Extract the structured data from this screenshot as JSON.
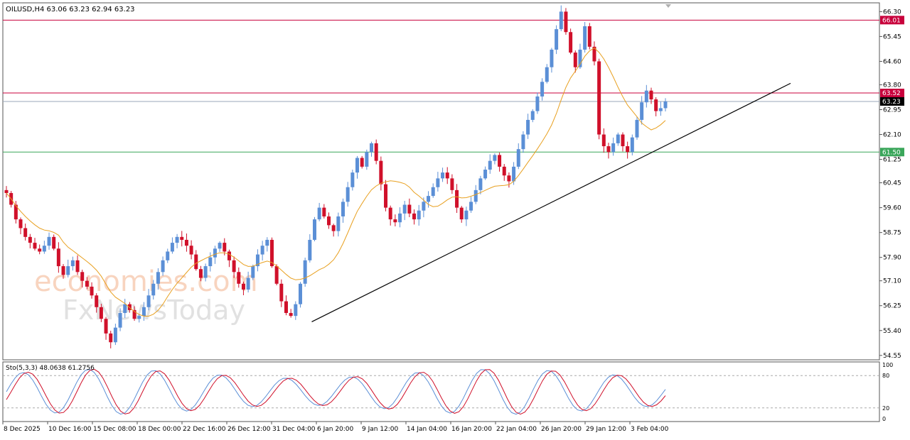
{
  "chart_data": [
    {
      "type": "candlestick",
      "symbol_line": "OILUSD,H4  63.06 63.23 62.94 63.23",
      "y_ticks": [
        "66.30",
        "65.45",
        "64.60",
        "63.80",
        "62.95",
        "62.10",
        "61.25",
        "60.45",
        "59.60",
        "58.75",
        "57.90",
        "57.10",
        "56.25",
        "55.40",
        "54.55"
      ],
      "ylim": [
        54.4,
        66.6
      ],
      "x_ticks": [
        "8 Dec 2025",
        "10 Dec 16:00",
        "15 Dec 08:00",
        "18 Dec 00:00",
        "22 Dec 16:00",
        "26 Dec 12:00",
        "31 Dec 04:00",
        "6 Jan 20:00",
        "9 Jan 12:00",
        "14 Jan 04:00",
        "16 Jan 20:00",
        "22 Jan 04:00",
        "26 Jan 20:00",
        "29 Jan 12:00",
        "3 Feb 04:00"
      ],
      "horizontal_levels": [
        {
          "value": 66.01,
          "label": "66.01",
          "color": "#c8003c"
        },
        {
          "value": 63.52,
          "label": "63.52",
          "color": "#c8003c"
        },
        {
          "value": 63.23,
          "label": "63.23",
          "color": "#9aa7b8",
          "current_price": true
        },
        {
          "value": 61.5,
          "label": "61.50",
          "color": "#3aa65a"
        }
      ],
      "trendline": {
        "from": {
          "x": "6 Jan 20:00",
          "y": 55.7
        },
        "to": {
          "x": "after 3 Feb 04:00",
          "y": 63.85
        },
        "color": "#000000"
      },
      "moving_average_color": "#e8a020",
      "bull_color": "#5b8fd6",
      "bear_color": "#d0102a",
      "price_path": [
        60.1,
        59.7,
        59.2,
        58.9,
        58.6,
        58.4,
        58.2,
        58.1,
        58.3,
        58.6,
        58.2,
        57.6,
        57.3,
        57.6,
        57.8,
        57.4,
        57.1,
        56.9,
        56.6,
        56.2,
        55.8,
        55.3,
        55.0,
        55.5,
        56.0,
        56.3,
        56.1,
        55.8,
        55.9,
        56.2,
        56.6,
        57.0,
        57.4,
        57.8,
        58.1,
        58.4,
        58.6,
        58.5,
        58.3,
        58.0,
        57.5,
        57.2,
        57.6,
        57.9,
        58.2,
        58.4,
        58.1,
        57.8,
        57.4,
        57.0,
        56.8,
        57.2,
        57.6,
        58.0,
        58.3,
        58.5,
        57.6,
        57.0,
        56.4,
        56.0,
        55.9,
        56.3,
        57.0,
        57.8,
        58.5,
        59.2,
        59.6,
        59.3,
        59.0,
        58.8,
        59.3,
        59.8,
        60.3,
        60.8,
        61.3,
        61.0,
        61.5,
        61.8,
        61.2,
        60.4,
        59.6,
        59.2,
        59.1,
        59.4,
        59.7,
        59.4,
        59.2,
        59.5,
        59.8,
        60.0,
        60.3,
        60.6,
        60.8,
        60.6,
        60.2,
        59.6,
        59.2,
        59.5,
        59.8,
        60.2,
        60.6,
        60.9,
        61.2,
        61.4,
        61.0,
        60.7,
        60.5,
        61.0,
        61.6,
        62.1,
        62.6,
        62.9,
        63.4,
        63.9,
        64.4,
        65.0,
        65.7,
        66.3,
        65.6,
        64.9,
        64.4,
        65.0,
        65.8,
        65.1,
        64.6,
        62.1,
        61.7,
        61.5,
        61.8,
        62.1,
        61.7,
        61.5,
        62.0,
        62.6,
        63.2,
        63.6,
        63.3,
        62.9,
        63.0,
        63.23
      ],
      "stochastic": {
        "label": "Sto(5,3,3) 48.0638 61.2756",
        "k": 48.0638,
        "d": 61.2756,
        "ylim": [
          0,
          100
        ],
        "y_ticks": [
          "100",
          "80",
          "20",
          "0"
        ],
        "levels": [
          80,
          20
        ],
        "k_color": "#5b8fd6",
        "d_color": "#d0102a"
      }
    }
  ],
  "watermark": {
    "line1": "economies.com",
    "line2": "FxNewsToday"
  }
}
